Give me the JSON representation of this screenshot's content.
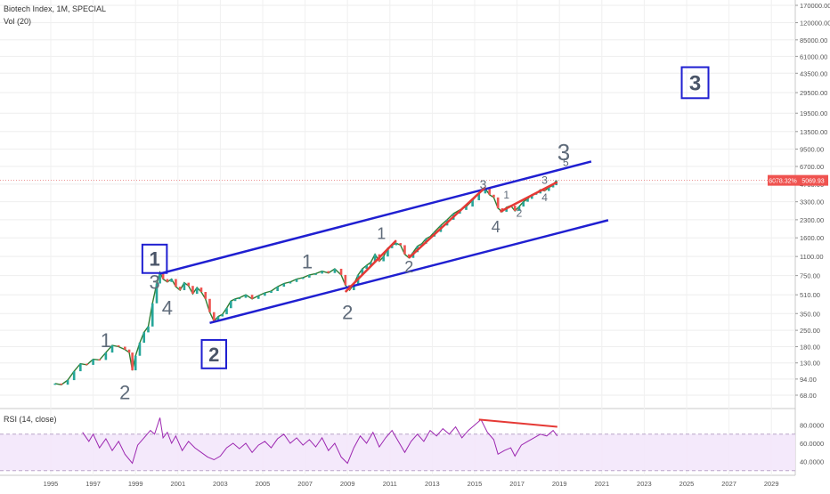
{
  "chart_data": {
    "type": "candlestick",
    "title": "Biotech Index, 1M, SPECIAL",
    "volume_label": "Vol (20)",
    "scale": "log",
    "price_ticks": [
      "170000.00",
      "120000.00",
      "85000.00",
      "61000.00",
      "43500.00",
      "29500.00",
      "19500.00",
      "13500.00",
      "9500.00",
      "6700.00",
      "4700.00",
      "3300.00",
      "2300.00",
      "1600.00",
      "1100.00",
      "750.00",
      "510.00",
      "350.00",
      "250.00",
      "180.00",
      "130.00",
      "94.00",
      "68.00"
    ],
    "price_tick_values": [
      170000,
      120000,
      85000,
      61000,
      43500,
      29500,
      19500,
      13500,
      9500,
      6700,
      4700,
      3300,
      2300,
      1600,
      1100,
      750,
      510,
      350,
      250,
      180,
      130,
      94,
      68
    ],
    "x_ticks": [
      "1995",
      "1997",
      "1999",
      "2001",
      "2003",
      "2005",
      "2007",
      "2009",
      "2011",
      "2013",
      "2015",
      "2017",
      "2019",
      "2021",
      "2023",
      "2025",
      "2027",
      "2029"
    ],
    "x_tick_years": [
      1995,
      1997,
      1999,
      2001,
      2003,
      2005,
      2007,
      2009,
      2011,
      2013,
      2015,
      2017,
      2019,
      2021,
      2023,
      2025,
      2027,
      2029
    ],
    "last_price": {
      "label_left": "6078.32%",
      "label_right": "5069.93",
      "value": 5069.93
    },
    "price_series": [
      [
        1995.2,
        86
      ],
      [
        1995.5,
        84
      ],
      [
        1995.8,
        92
      ],
      [
        1996.1,
        110
      ],
      [
        1996.4,
        128
      ],
      [
        1996.7,
        125
      ],
      [
        1997.0,
        140
      ],
      [
        1997.3,
        138
      ],
      [
        1997.6,
        160
      ],
      [
        1997.9,
        185
      ],
      [
        1998.2,
        180
      ],
      [
        1998.5,
        170
      ],
      [
        1998.7,
        160
      ],
      [
        1998.85,
        112
      ],
      [
        1999.0,
        150
      ],
      [
        1999.2,
        195
      ],
      [
        1999.4,
        240
      ],
      [
        1999.6,
        270
      ],
      [
        1999.8,
        430
      ],
      [
        2000.0,
        640
      ],
      [
        2000.15,
        800
      ],
      [
        2000.3,
        700
      ],
      [
        2000.5,
        660
      ],
      [
        2000.7,
        700
      ],
      [
        2000.9,
        600
      ],
      [
        2001.1,
        560
      ],
      [
        2001.3,
        650
      ],
      [
        2001.5,
        610
      ],
      [
        2001.7,
        520
      ],
      [
        2001.9,
        590
      ],
      [
        2002.1,
        540
      ],
      [
        2002.3,
        470
      ],
      [
        2002.5,
        360
      ],
      [
        2002.7,
        300
      ],
      [
        2002.9,
        330
      ],
      [
        2003.1,
        345
      ],
      [
        2003.3,
        390
      ],
      [
        2003.5,
        450
      ],
      [
        2003.7,
        470
      ],
      [
        2003.9,
        480
      ],
      [
        2004.2,
        510
      ],
      [
        2004.5,
        470
      ],
      [
        2004.8,
        500
      ],
      [
        2005.1,
        530
      ],
      [
        2005.4,
        550
      ],
      [
        2005.7,
        600
      ],
      [
        2006.0,
        640
      ],
      [
        2006.3,
        660
      ],
      [
        2006.6,
        700
      ],
      [
        2006.9,
        720
      ],
      [
        2007.2,
        760
      ],
      [
        2007.5,
        780
      ],
      [
        2007.8,
        820
      ],
      [
        2008.1,
        790
      ],
      [
        2008.4,
        860
      ],
      [
        2008.7,
        760
      ],
      [
        2008.9,
        620
      ],
      [
        2009.1,
        560
      ],
      [
        2009.3,
        630
      ],
      [
        2009.5,
        760
      ],
      [
        2009.7,
        860
      ],
      [
        2009.9,
        920
      ],
      [
        2010.1,
        980
      ],
      [
        2010.3,
        1150
      ],
      [
        2010.5,
        1000
      ],
      [
        2010.7,
        1100
      ],
      [
        2010.9,
        1300
      ],
      [
        2011.1,
        1380
      ],
      [
        2011.3,
        1440
      ],
      [
        2011.5,
        1380
      ],
      [
        2011.7,
        1150
      ],
      [
        2011.9,
        1070
      ],
      [
        2012.1,
        1200
      ],
      [
        2012.3,
        1350
      ],
      [
        2012.5,
        1420
      ],
      [
        2012.7,
        1570
      ],
      [
        2012.9,
        1640
      ],
      [
        2013.1,
        1800
      ],
      [
        2013.4,
        2050
      ],
      [
        2013.7,
        2300
      ],
      [
        2014.0,
        2600
      ],
      [
        2014.3,
        2800
      ],
      [
        2014.6,
        3000
      ],
      [
        2014.9,
        3400
      ],
      [
        2015.2,
        3900
      ],
      [
        2015.5,
        4300
      ],
      [
        2015.7,
        3800
      ],
      [
        2015.9,
        3600
      ],
      [
        2016.1,
        2900
      ],
      [
        2016.3,
        2700
      ],
      [
        2016.5,
        2950
      ],
      [
        2016.7,
        3050
      ],
      [
        2016.9,
        2750
      ],
      [
        2017.1,
        3000
      ],
      [
        2017.3,
        3300
      ],
      [
        2017.5,
        3500
      ],
      [
        2017.7,
        3800
      ],
      [
        2017.9,
        3900
      ],
      [
        2018.1,
        4200
      ],
      [
        2018.3,
        4100
      ],
      [
        2018.5,
        4400
      ],
      [
        2018.7,
        4600
      ],
      [
        2018.85,
        5069.93
      ]
    ],
    "channel": {
      "upper": {
        "x": [
          2000.15,
          2020.5
        ],
        "y": [
          780,
          7400
        ]
      },
      "lower": {
        "x": [
          2002.5,
          2021.3
        ],
        "y": [
          290,
          2280
        ]
      }
    },
    "red_segments": [
      {
        "x": [
          2008.9,
          2011.3
        ],
        "y": [
          540,
          1520
        ]
      },
      {
        "x": [
          2011.9,
          2015.5
        ],
        "y": [
          1070,
          4400
        ]
      },
      {
        "x": [
          2016.2,
          2018.9
        ],
        "y": [
          2700,
          4900
        ]
      }
    ],
    "annotations": [
      {
        "text": "1",
        "x": 1997.6,
        "y": 205,
        "size": 22,
        "boxed": false
      },
      {
        "text": "2",
        "x": 1998.5,
        "y": 72,
        "size": 22,
        "boxed": false
      },
      {
        "text": "3",
        "x": 1999.9,
        "y": 660,
        "size": 22,
        "boxed": false
      },
      {
        "text": "4",
        "x": 2000.5,
        "y": 395,
        "size": 22,
        "boxed": false
      },
      {
        "text": "1",
        "x": 1999.9,
        "y": 1050,
        "size": 22,
        "boxed": true
      },
      {
        "text": "2",
        "x": 2002.7,
        "y": 155,
        "size": 22,
        "boxed": true
      },
      {
        "text": "1",
        "x": 2007.1,
        "y": 1000,
        "size": 22,
        "boxed": false
      },
      {
        "text": "2",
        "x": 2009.0,
        "y": 360,
        "size": 22,
        "boxed": false
      },
      {
        "text": "1",
        "x": 2010.6,
        "y": 1750,
        "size": 18,
        "boxed": false
      },
      {
        "text": "2",
        "x": 2011.9,
        "y": 900,
        "size": 18,
        "boxed": false
      },
      {
        "text": "3",
        "x": 2015.4,
        "y": 4700,
        "size": 14,
        "boxed": false
      },
      {
        "text": "4",
        "x": 2016.0,
        "y": 2000,
        "size": 18,
        "boxed": false
      },
      {
        "text": "1",
        "x": 2016.5,
        "y": 3800,
        "size": 12,
        "boxed": false
      },
      {
        "text": "2",
        "x": 2017.1,
        "y": 2650,
        "size": 12,
        "boxed": false
      },
      {
        "text": "3",
        "x": 2018.3,
        "y": 5100,
        "size": 12,
        "boxed": false
      },
      {
        "text": "4",
        "x": 2018.3,
        "y": 3600,
        "size": 12,
        "boxed": false
      },
      {
        "text": "3",
        "x": 2019.2,
        "y": 9000,
        "size": 26,
        "boxed": false
      },
      {
        "text": "5",
        "x": 2019.3,
        "y": 7300,
        "size": 12,
        "boxed": false
      },
      {
        "text": "3",
        "x": 2025.4,
        "y": 36000,
        "size": 24,
        "boxed": true
      }
    ],
    "rsi": {
      "label": "RSI (14, close)",
      "ticks": [
        "80.0000",
        "60.0000",
        "40.0000"
      ],
      "tick_values": [
        80,
        60,
        40
      ],
      "band": [
        30,
        70
      ],
      "series": [
        [
          1996.5,
          72
        ],
        [
          1996.8,
          62
        ],
        [
          1997.0,
          70
        ],
        [
          1997.3,
          55
        ],
        [
          1997.6,
          65
        ],
        [
          1997.9,
          52
        ],
        [
          1998.2,
          62
        ],
        [
          1998.5,
          48
        ],
        [
          1998.85,
          38
        ],
        [
          1999.1,
          58
        ],
        [
          1999.4,
          66
        ],
        [
          1999.7,
          74
        ],
        [
          1999.9,
          70
        ],
        [
          2000.15,
          88
        ],
        [
          2000.3,
          66
        ],
        [
          2000.5,
          72
        ],
        [
          2000.7,
          60
        ],
        [
          2000.9,
          68
        ],
        [
          2001.2,
          52
        ],
        [
          2001.5,
          62
        ],
        [
          2001.8,
          55
        ],
        [
          2002.1,
          50
        ],
        [
          2002.4,
          45
        ],
        [
          2002.7,
          42
        ],
        [
          2003.0,
          46
        ],
        [
          2003.3,
          55
        ],
        [
          2003.6,
          60
        ],
        [
          2003.9,
          54
        ],
        [
          2004.2,
          60
        ],
        [
          2004.5,
          50
        ],
        [
          2004.8,
          58
        ],
        [
          2005.1,
          62
        ],
        [
          2005.4,
          55
        ],
        [
          2005.7,
          65
        ],
        [
          2006.0,
          70
        ],
        [
          2006.3,
          60
        ],
        [
          2006.6,
          66
        ],
        [
          2006.9,
          58
        ],
        [
          2007.2,
          64
        ],
        [
          2007.5,
          56
        ],
        [
          2007.8,
          66
        ],
        [
          2008.1,
          52
        ],
        [
          2008.4,
          60
        ],
        [
          2008.7,
          45
        ],
        [
          2009.0,
          38
        ],
        [
          2009.3,
          55
        ],
        [
          2009.6,
          68
        ],
        [
          2009.9,
          60
        ],
        [
          2010.2,
          72
        ],
        [
          2010.5,
          56
        ],
        [
          2010.8,
          66
        ],
        [
          2011.1,
          74
        ],
        [
          2011.4,
          62
        ],
        [
          2011.7,
          50
        ],
        [
          2012.0,
          62
        ],
        [
          2012.3,
          70
        ],
        [
          2012.6,
          62
        ],
        [
          2012.9,
          74
        ],
        [
          2013.2,
          68
        ],
        [
          2013.5,
          76
        ],
        [
          2013.8,
          70
        ],
        [
          2014.1,
          78
        ],
        [
          2014.4,
          66
        ],
        [
          2014.7,
          74
        ],
        [
          2015.0,
          80
        ],
        [
          2015.3,
          86
        ],
        [
          2015.6,
          72
        ],
        [
          2015.9,
          64
        ],
        [
          2016.1,
          48
        ],
        [
          2016.4,
          52
        ],
        [
          2016.7,
          55
        ],
        [
          2016.9,
          46
        ],
        [
          2017.2,
          58
        ],
        [
          2017.5,
          62
        ],
        [
          2017.8,
          66
        ],
        [
          2018.1,
          70
        ],
        [
          2018.4,
          68
        ],
        [
          2018.7,
          74
        ],
        [
          2018.9,
          68
        ]
      ],
      "divergence": {
        "x": [
          2015.2,
          2018.9
        ],
        "y": [
          86,
          78
        ]
      }
    }
  }
}
